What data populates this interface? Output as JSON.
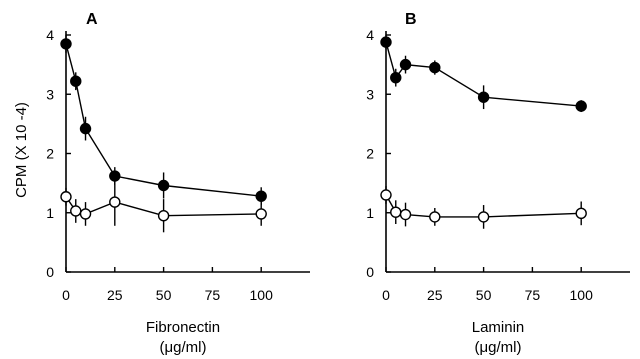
{
  "figure": {
    "ylabel": "CPM (X 10 -4)"
  },
  "chart_data": [
    {
      "type": "line",
      "panel_label": "A",
      "xlabel_line1": "Fibronectin",
      "xlabel_line2": "(μg/ml)",
      "xlim": [
        0,
        125
      ],
      "ylim": [
        0,
        4
      ],
      "xticks": [
        0,
        25,
        50,
        75,
        100
      ],
      "yticks": [
        0,
        1,
        2,
        3,
        4
      ],
      "grid": false,
      "series": [
        {
          "marker": "filled-circle",
          "x": [
            0,
            5,
            10,
            25,
            50,
            100
          ],
          "y": [
            3.85,
            3.22,
            2.42,
            1.62,
            1.46,
            1.28
          ],
          "err": [
            0.15,
            0.15,
            0.2,
            0.15,
            0.22,
            0.15
          ]
        },
        {
          "marker": "open-circle",
          "x": [
            0,
            5,
            10,
            25,
            50,
            100
          ],
          "y": [
            1.27,
            1.03,
            0.98,
            1.18,
            0.95,
            0.98
          ],
          "err": [
            0.15,
            0.2,
            0.2,
            0.4,
            0.28,
            0.2
          ]
        }
      ]
    },
    {
      "type": "line",
      "panel_label": "B",
      "xlabel_line1": "Laminin",
      "xlabel_line2": "(μg/ml)",
      "xlim": [
        0,
        125
      ],
      "ylim": [
        0,
        4
      ],
      "xticks": [
        0,
        25,
        50,
        75,
        100
      ],
      "yticks": [
        0,
        1,
        2,
        3,
        4
      ],
      "grid": false,
      "series": [
        {
          "marker": "filled-circle",
          "x": [
            0,
            5,
            10,
            25,
            50,
            100
          ],
          "y": [
            3.88,
            3.28,
            3.5,
            3.45,
            2.95,
            2.8
          ],
          "err": [
            0.12,
            0.15,
            0.15,
            0.12,
            0.2,
            0.1
          ]
        },
        {
          "marker": "open-circle",
          "x": [
            0,
            5,
            10,
            25,
            50,
            100
          ],
          "y": [
            1.3,
            1.01,
            0.97,
            0.93,
            0.93,
            0.99
          ],
          "err": [
            0.15,
            0.2,
            0.2,
            0.15,
            0.2,
            0.2
          ]
        }
      ]
    }
  ]
}
